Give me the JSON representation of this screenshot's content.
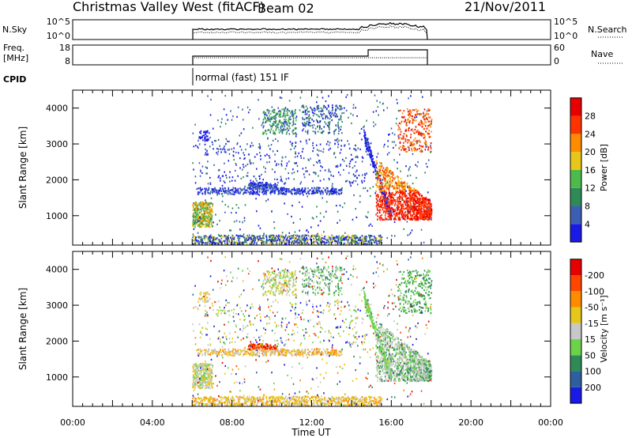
{
  "header": {
    "station": "Christmas Valley West (fitACF)",
    "beam": "Beam 02",
    "date": "21/Nov/2011"
  },
  "top_panels": {
    "nsky": {
      "left_label": "N.Sky",
      "right_label": "N.Search",
      "left_ticks": [
        "10^5",
        "10^0"
      ],
      "right_ticks": [
        "10^5",
        "10^0"
      ]
    },
    "freq": {
      "left_label_1": "Freq.",
      "left_label_2": "[MHz]",
      "right_label": "Nave",
      "left_ticks": [
        "18",
        "8"
      ],
      "right_ticks": [
        "60",
        "0"
      ]
    },
    "cpid": {
      "label": "CPID",
      "mode": "normal (fast) 151 IF"
    }
  },
  "chart_data": [
    {
      "type": "heatmap",
      "name": "power",
      "xlabel": "",
      "ylabel": "Slant Range [km]",
      "xlim": [
        0,
        24
      ],
      "ylim": [
        180,
        4500
      ],
      "yticks": [
        1000,
        2000,
        3000,
        4000
      ],
      "colorbar": {
        "label": "Power [dB]",
        "ticks": [
          "4",
          "8",
          "12",
          "16",
          "20",
          "24",
          "28"
        ],
        "colors": [
          "#1a1ae6",
          "#3c5fb4",
          "#2e8b57",
          "#4cbb4c",
          "#e6c619",
          "#ff8c00",
          "#ff3300",
          "#e60000"
        ]
      }
    },
    {
      "type": "heatmap",
      "name": "velocity",
      "xlabel": "Time UT",
      "ylabel": "Slant Range [km]",
      "xlim": [
        0,
        24
      ],
      "ylim": [
        180,
        4500
      ],
      "yticks": [
        1000,
        2000,
        3000,
        4000
      ],
      "xticks": [
        "00:00",
        "04:00",
        "08:00",
        "12:00",
        "16:00",
        "20:00",
        "00:00"
      ],
      "colorbar": {
        "label": "Velocity [m s⁻¹]",
        "ticks": [
          "200",
          "100",
          "50",
          "15",
          "-15",
          "-50",
          "-100",
          "-200"
        ],
        "colors": [
          "#1a1ae6",
          "#2e5fa0",
          "#2e8b57",
          "#6cd24a",
          "#c8c8c8",
          "#e6c619",
          "#ff8c00",
          "#ff4500",
          "#e60000"
        ]
      }
    }
  ]
}
